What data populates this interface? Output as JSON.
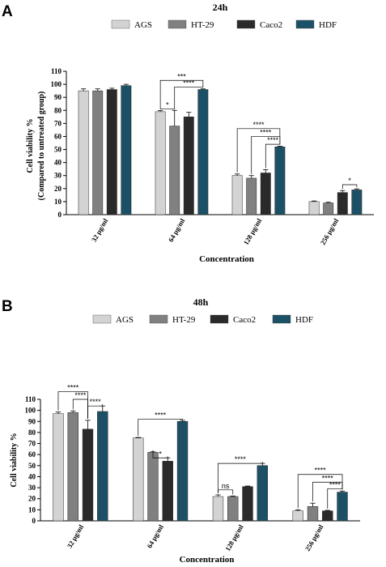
{
  "chart_data": [
    {
      "type": "bar",
      "panel": "A",
      "title": "24h",
      "categories": [
        "32 µg/ml",
        "64 µg/ml",
        "128 µg/ml",
        "256 µg/ml"
      ],
      "series": [
        {
          "name": "AGS",
          "color": "#d3d3d3",
          "values": [
            95,
            79,
            30,
            10
          ],
          "errors": [
            1.5,
            0.8,
            1.2,
            0.5
          ]
        },
        {
          "name": "HT-29",
          "color": "#808080",
          "values": [
            95,
            68,
            28,
            9
          ],
          "errors": [
            1.5,
            12,
            2,
            0.5
          ]
        },
        {
          "name": "Caco2",
          "color": "#2a2a2a",
          "values": [
            96,
            75,
            32,
            17
          ],
          "errors": [
            1,
            3.5,
            2.5,
            1.5
          ]
        },
        {
          "name": "HDF",
          "color": "#1c5066",
          "values": [
            99,
            96,
            52,
            19
          ],
          "errors": [
            1,
            0.5,
            0.5,
            0.8
          ]
        }
      ],
      "xlabel": "Concentration",
      "ylabel": [
        "Cell viability %",
        "(Compared to untreated group)"
      ],
      "ylim": [
        0,
        110
      ],
      "yticks": [
        0,
        10,
        20,
        30,
        40,
        50,
        60,
        70,
        80,
        90,
        100,
        110
      ],
      "legend": "top",
      "grid": false,
      "annotations": [
        {
          "cat": 1,
          "from": 0,
          "to": 3,
          "label": "***",
          "level": 103
        },
        {
          "cat": 1,
          "from": 1,
          "to": 3,
          "label": "****",
          "level": 98
        },
        {
          "cat": 1,
          "from": 0,
          "to": 1,
          "label": "*",
          "level": 81
        },
        {
          "cat": 2,
          "from": 0,
          "to": 3,
          "label": "****",
          "level": 66
        },
        {
          "cat": 2,
          "from": 1,
          "to": 3,
          "label": "****",
          "level": 60
        },
        {
          "cat": 2,
          "from": 2,
          "to": 3,
          "label": "****",
          "level": 54
        },
        {
          "cat": 3,
          "from": 2,
          "to": 3,
          "label": "*",
          "level": 23
        }
      ]
    },
    {
      "type": "bar",
      "panel": "B",
      "title": "48h",
      "categories": [
        "32 µg/ml",
        "64 µg/ml",
        "128 µg/ml",
        "256 µg/ml"
      ],
      "series": [
        {
          "name": "AGS",
          "color": "#d3d3d3",
          "values": [
            97,
            75,
            22,
            9
          ],
          "errors": [
            1.5,
            0.5,
            1.5,
            1
          ]
        },
        {
          "name": "HT-29",
          "color": "#808080",
          "values": [
            98,
            62,
            22,
            13
          ],
          "errors": [
            1.5,
            0.5,
            0.5,
            3
          ]
        },
        {
          "name": "Caco2",
          "color": "#2a2a2a",
          "values": [
            83,
            54,
            31,
            9
          ],
          "errors": [
            8,
            3,
            0.5,
            0.5
          ]
        },
        {
          "name": "HDF",
          "color": "#1c5066",
          "values": [
            99,
            90,
            50,
            26
          ],
          "errors": [
            5,
            1,
            2,
            1
          ]
        }
      ],
      "xlabel": "Concentration",
      "ylabel": [
        "Cell viability %"
      ],
      "ylim": [
        0,
        110
      ],
      "yticks": [
        0,
        10,
        20,
        30,
        40,
        50,
        60,
        70,
        80,
        90,
        100,
        110
      ],
      "legend": "top",
      "grid": false,
      "annotations": [
        {
          "cat": 0,
          "from": 0,
          "to": 2,
          "label": "****",
          "level": 117
        },
        {
          "cat": 0,
          "from": 1,
          "to": 2,
          "label": "****",
          "level": 110
        },
        {
          "cat": 0,
          "from": 2,
          "to": 3,
          "label": "****",
          "level": 104
        },
        {
          "cat": 1,
          "from": 0,
          "to": 3,
          "label": "****",
          "level": 92
        },
        {
          "cat": 1,
          "from": 1,
          "to": 2,
          "label": "*",
          "level": 57
        },
        {
          "cat": 2,
          "from": 0,
          "to": 3,
          "label": "****",
          "level": 52
        },
        {
          "cat": 2,
          "from": 0,
          "to": 1,
          "label": "ns",
          "level": 28
        },
        {
          "cat": 3,
          "from": 0,
          "to": 3,
          "label": "****",
          "level": 42
        },
        {
          "cat": 3,
          "from": 1,
          "to": 3,
          "label": "****",
          "level": 35
        },
        {
          "cat": 3,
          "from": 2,
          "to": 3,
          "label": "****",
          "level": 29
        }
      ]
    }
  ]
}
